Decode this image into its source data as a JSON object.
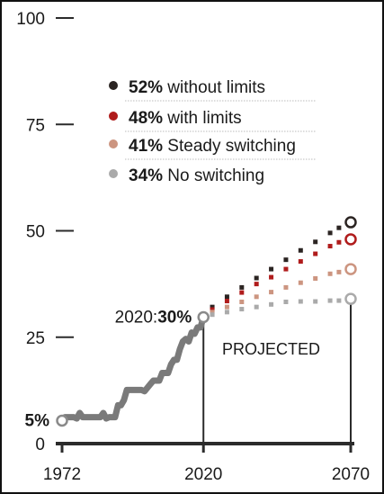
{
  "chart_data": {
    "type": "line",
    "title": "",
    "xlabel": "",
    "ylabel": "",
    "xlim": [
      1972,
      2070
    ],
    "ylim": [
      0,
      100
    ],
    "x_ticks": [
      "1972",
      "2020",
      "2070"
    ],
    "y_ticks": [
      "100",
      "75",
      "50",
      "25",
      "0"
    ],
    "grid": false,
    "legend_position": "top",
    "projected_label": "PROJECTED",
    "start_label": "5%",
    "end_history_label": {
      "prefix": "2020:",
      "value": "30%"
    },
    "colors": {
      "history": "#7a7a7a",
      "axis": "#2b2b2b",
      "separator": "#bbbbbb"
    },
    "history": {
      "x": [
        1972,
        1973,
        1976,
        1977,
        1978,
        1979,
        1982,
        1985,
        1986,
        1987,
        1988,
        1990,
        1991,
        1992,
        1993,
        1994,
        1996,
        1999,
        2000,
        2002,
        2003,
        2005,
        2006,
        2008,
        2009,
        2010,
        2011,
        2012,
        2013,
        2014,
        2015,
        2016,
        2017,
        2018,
        2019,
        2020
      ],
      "y": [
        5.4,
        6.2,
        6.2,
        5.9,
        7.2,
        6.2,
        6.2,
        6.2,
        7.2,
        5.9,
        6.2,
        6.2,
        9.0,
        9.0,
        10.2,
        12.6,
        12.6,
        12.6,
        12.3,
        14.0,
        14.8,
        14.8,
        16.6,
        16.6,
        18.6,
        19.7,
        19.7,
        22.2,
        24.0,
        24.6,
        24.0,
        26.1,
        25.8,
        27.3,
        27.3,
        29.7
      ]
    },
    "projection_x": [
      2023,
      2028,
      2033,
      2038,
      2043,
      2048,
      2053,
      2058,
      2063,
      2066
    ],
    "series": [
      {
        "name": "without limits",
        "pct_label": "52%",
        "color": "#2b2422",
        "end_value": 52,
        "values": [
          32.1,
          34.5,
          36.7,
          38.9,
          41.0,
          43.2,
          45.4,
          47.4,
          49.5,
          50.7
        ]
      },
      {
        "name": "with limits",
        "pct_label": "48%",
        "color": "#b01c1c",
        "end_value": 48,
        "values": [
          31.5,
          33.5,
          35.5,
          37.5,
          39.1,
          41.0,
          42.8,
          44.6,
          46.4,
          47.3
        ]
      },
      {
        "name": "Steady switching",
        "pct_label": "41%",
        "color": "#cc9580",
        "end_value": 41,
        "values": [
          30.9,
          32.1,
          33.3,
          34.5,
          35.6,
          36.7,
          37.8,
          38.8,
          39.9,
          40.3
        ]
      },
      {
        "name": "No switching",
        "pct_label": "34%",
        "color": "#aaaaaa",
        "end_value": 34,
        "values": [
          30.3,
          30.9,
          31.6,
          32.1,
          32.7,
          33.3,
          33.4,
          33.4,
          33.6,
          33.6
        ]
      }
    ]
  }
}
